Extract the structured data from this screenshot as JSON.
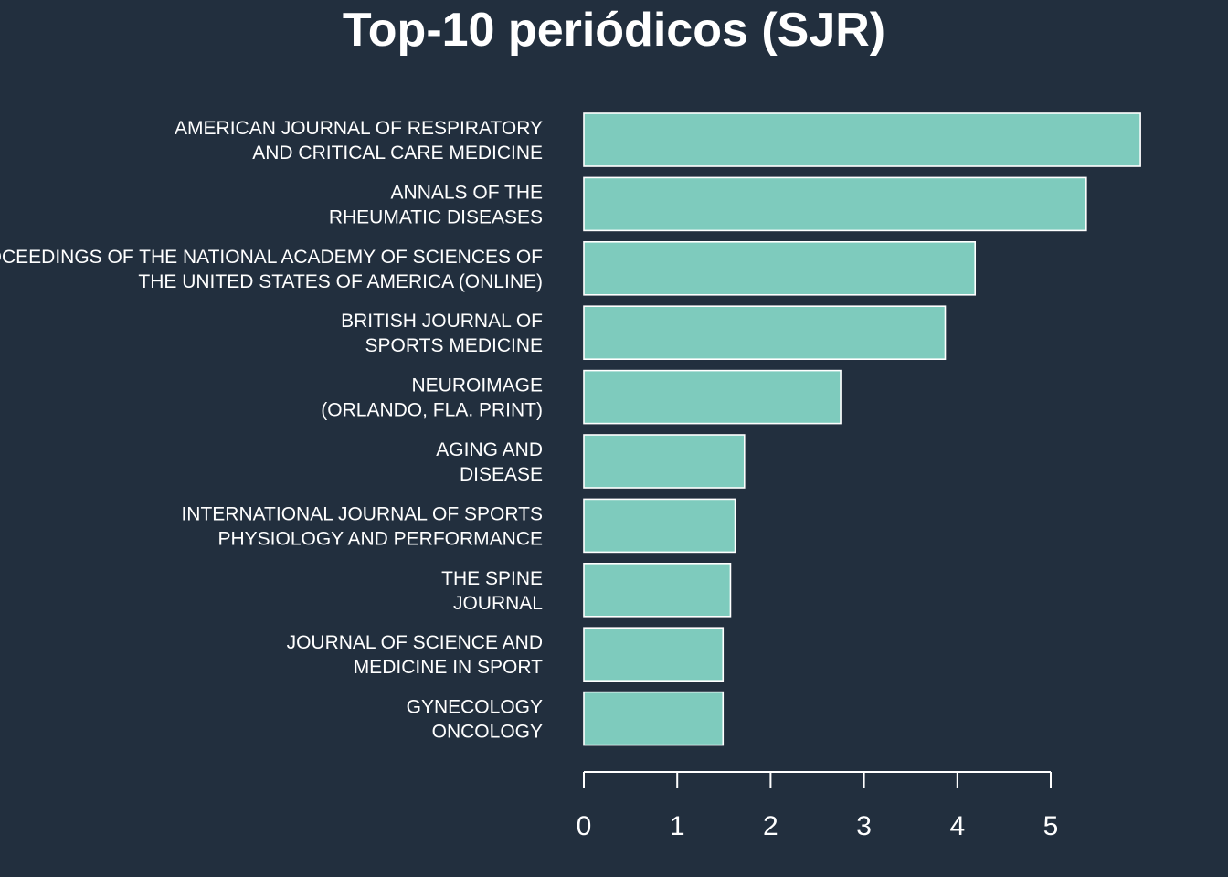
{
  "chart_data": {
    "type": "bar",
    "orientation": "horizontal",
    "title": "Top-10 periódicos (SJR)",
    "xlabel": "",
    "ylabel": "",
    "bar_color": "#7ecbbd",
    "background_color": "#222f3e",
    "text_color": "#ffffff",
    "xlim": [
      0,
      6
    ],
    "x_ticks": [
      0,
      1,
      2,
      3,
      4,
      5
    ],
    "grid": false,
    "categories": [
      [
        "AMERICAN JOURNAL OF RESPIRATORY",
        "AND CRITICAL CARE MEDICINE"
      ],
      [
        "ANNALS OF THE",
        "RHEUMATIC DISEASES"
      ],
      [
        "PROCEEDINGS OF THE NATIONAL ACADEMY OF SCIENCES OF",
        "THE UNITED STATES OF AMERICA (ONLINE)"
      ],
      [
        "BRITISH JOURNAL OF",
        "SPORTS MEDICINE"
      ],
      [
        "NEUROIMAGE",
        "(ORLANDO, FLA. PRINT)"
      ],
      [
        "AGING AND",
        "DISEASE"
      ],
      [
        "INTERNATIONAL JOURNAL OF SPORTS",
        "PHYSIOLOGY AND PERFORMANCE"
      ],
      [
        "THE SPINE",
        "JOURNAL"
      ],
      [
        "JOURNAL OF SCIENCE AND",
        "MEDICINE IN SPORT"
      ],
      [
        "GYNECOLOGY",
        "ONCOLOGY"
      ]
    ],
    "values": [
      5.96,
      5.38,
      4.19,
      3.87,
      2.75,
      1.72,
      1.62,
      1.57,
      1.49,
      1.49
    ]
  }
}
